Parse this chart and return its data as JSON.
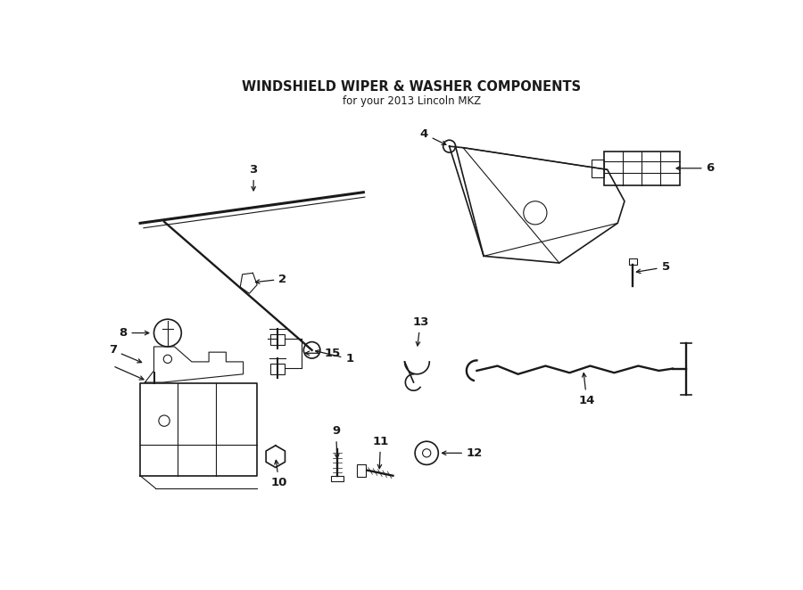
{
  "title": "WINDSHIELD WIPER & WASHER COMPONENTS",
  "subtitle": "for your 2013 Lincoln MKZ",
  "bg_color": "#ffffff",
  "line_color": "#1a1a1a",
  "fig_width": 9.0,
  "fig_height": 6.62,
  "dpi": 100
}
